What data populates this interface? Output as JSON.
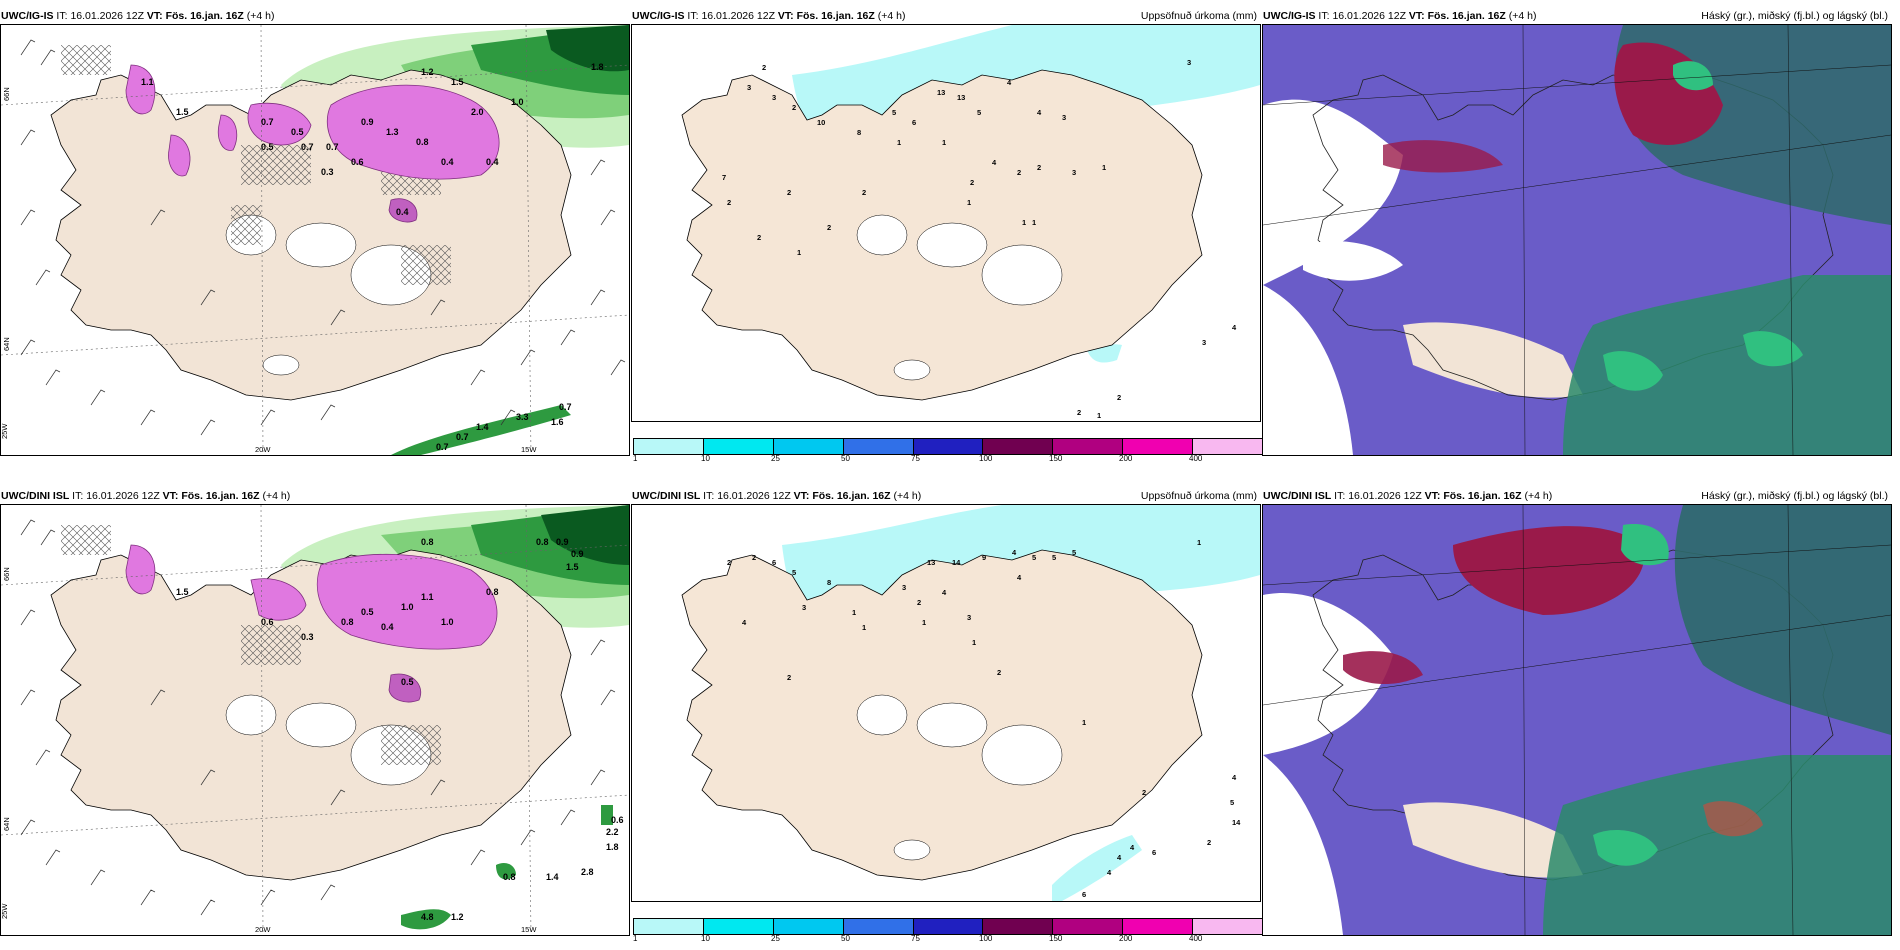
{
  "panels": [
    {
      "model": "UWC/IG-IS",
      "it_label": "IT:",
      "it": "16.01.2026 12Z",
      "vt_label": "VT:",
      "vt": "Fös. 16.jan. 16Z",
      "lead": "(+4 h)",
      "right": ""
    },
    {
      "model": "UWC/IG-IS",
      "it_label": "IT:",
      "it": "16.01.2026 12Z",
      "vt_label": "VT:",
      "vt": "Fös. 16.jan. 16Z",
      "lead": "(+4 h)",
      "right": "Uppsöfnuð úrkoma (mm)"
    },
    {
      "model": "UWC/IG-IS",
      "it_label": "IT:",
      "it": "16.01.2026 12Z",
      "vt_label": "VT:",
      "vt": "Fös. 16.jan. 16Z",
      "lead": "(+4 h)",
      "right": "Háský (gr.), miðský (fj.bl.) og lágský (bl.)"
    },
    {
      "model": "UWC/DINI ISL",
      "it_label": "IT:",
      "it": "16.01.2026 12Z",
      "vt_label": "VT:",
      "vt": "Fös. 16.jan. 16Z",
      "lead": "(+4 h)",
      "right": ""
    },
    {
      "model": "UWC/DINI ISL",
      "it_label": "IT:",
      "it": "16.01.2026 12Z",
      "vt_label": "VT:",
      "vt": "Fös. 16.jan. 16Z",
      "lead": "(+4 h)",
      "right": "Uppsöfnuð úrkoma (mm)"
    },
    {
      "model": "UWC/DINI ISL",
      "it_label": "IT:",
      "it": "16.01.2026 12Z",
      "vt_label": "VT:",
      "vt": "Fös. 16.jan. 16Z",
      "lead": "(+4 h)",
      "right": "Háský (gr.), miðský (fj.bl.) og lágský (bl.)"
    }
  ],
  "axis_labels": {
    "lat66": "66N",
    "lat64": "64N",
    "lon25": "25W",
    "lon20": "20W",
    "lon15": "15W"
  },
  "colorbar": {
    "ticks": [
      "1",
      "10",
      "25",
      "50",
      "75",
      "100",
      "150",
      "200",
      "400"
    ],
    "colors": [
      "#b8f8f8",
      "#00e8f0",
      "#00c8f0",
      "#3070e8",
      "#2020c0",
      "#700050",
      "#b00080",
      "#f000b0",
      "#f8b8f0"
    ]
  },
  "wind_values_top": [
    "1.2",
    "1.5",
    "1.8",
    "2.0",
    "0.9",
    "1.3",
    "0.8",
    "0.4",
    "0.6",
    "0.3",
    "0.4",
    "0.7",
    "0.5",
    "1.5",
    "0.4",
    "1.1",
    "1.0",
    "0.7",
    "0.5",
    "0.7",
    "0.7",
    "0.7",
    "1.4",
    "3.3",
    "1.6",
    "0.7"
  ],
  "wind_values_bottom": [
    "0.8",
    "0.9",
    "0.8",
    "1.5",
    "0.9",
    "1.1",
    "1.0",
    "0.5",
    "0.8",
    "0.4",
    "0.3",
    "1.0",
    "0.5",
    "0.6",
    "0.8",
    "1.5",
    "0.6",
    "2.2",
    "1.8",
    "0.8",
    "1.4",
    "2.8",
    "4.8",
    "1.2"
  ],
  "precip_values_top": [
    "2",
    "3",
    "3",
    "2",
    "10",
    "8",
    "5",
    "13",
    "13",
    "6",
    "4",
    "4",
    "3",
    "3",
    "1",
    "1",
    "5",
    "7",
    "2",
    "2",
    "2",
    "4",
    "2",
    "2",
    "2",
    "1",
    "3",
    "1",
    "1",
    "1",
    "2",
    "2",
    "1",
    "3",
    "4",
    "2",
    "2",
    "1"
  ],
  "precip_values_bottom": [
    "2",
    "2",
    "6",
    "5",
    "8",
    "13",
    "14",
    "9",
    "4",
    "5",
    "5",
    "5",
    "4",
    "3",
    "4",
    "1",
    "1",
    "2",
    "3",
    "4",
    "3",
    "2",
    "2",
    "1",
    "1",
    "1",
    "2",
    "4",
    "5",
    "14",
    "2",
    "4",
    "6",
    "4",
    "4",
    "6",
    "1"
  ]
}
